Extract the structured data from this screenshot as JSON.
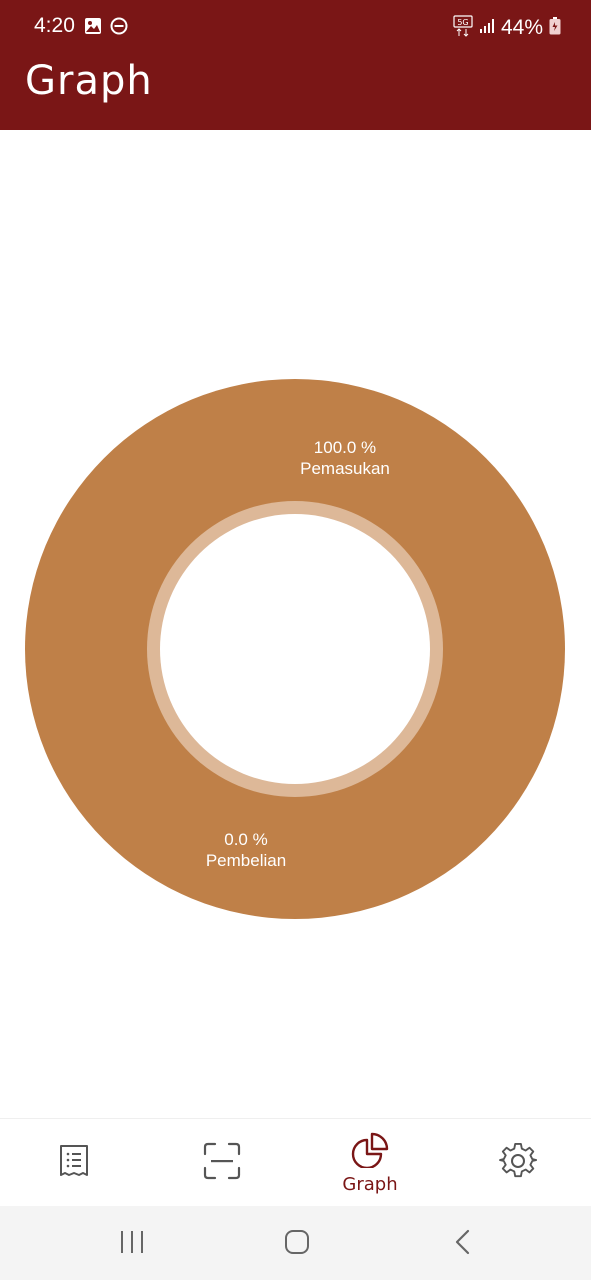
{
  "status_bar": {
    "time": "4:20",
    "network": "5G",
    "battery": "44%"
  },
  "app_bar": {
    "title": "Graph"
  },
  "chart_data": {
    "type": "pie",
    "style": "donut",
    "slices": [
      {
        "name": "Pemasukan",
        "value": 100.0,
        "label": "100.0 %",
        "color": "#bf8048"
      },
      {
        "name": "Pembelian",
        "value": 0.0,
        "label": "0.0 %",
        "color": "#bf8048"
      }
    ],
    "inner_ring_color": "#ddb898"
  },
  "bottom_nav": {
    "items": [
      {
        "id": "transactions",
        "icon": "receipt-list-icon",
        "label": ""
      },
      {
        "id": "scan",
        "icon": "scan-icon",
        "label": ""
      },
      {
        "id": "graph",
        "icon": "pie-chart-icon",
        "label": "Graph",
        "active": true
      },
      {
        "id": "settings",
        "icon": "gear-icon",
        "label": ""
      }
    ],
    "active_color": "#7a1616",
    "inactive_color": "#555555"
  },
  "colors": {
    "primary": "#7a1616",
    "donut": "#bf8048",
    "donut_inner": "#ddb898"
  }
}
